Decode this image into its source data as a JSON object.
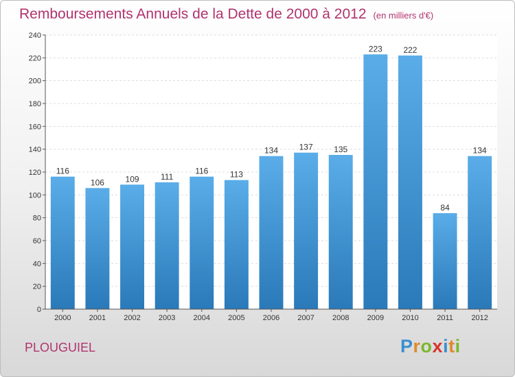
{
  "header": {
    "title": "Remboursements Annuels de la Dette de 2000 à 2012",
    "unit": "(en milliers d'€)"
  },
  "footer": {
    "city": "PLOUGUIEL",
    "logo": "Proxiti"
  },
  "colors": {
    "title": "#b0336e",
    "bar_top": "#5aade8",
    "bar_bottom": "#2a79b9",
    "logo_letters": [
      "#3a8fd0",
      "#e0892a",
      "#7ab82d",
      "#d8342d",
      "#3a8fd0",
      "#e0892a",
      "#7ab82d"
    ]
  },
  "chart_data": {
    "type": "bar",
    "categories": [
      "2000",
      "2001",
      "2002",
      "2003",
      "2004",
      "2005",
      "2006",
      "2007",
      "2008",
      "2009",
      "2010",
      "2011",
      "2012"
    ],
    "values": [
      116,
      106,
      109,
      111,
      116,
      113,
      134,
      137,
      135,
      223,
      222,
      84,
      134
    ],
    "ylim": [
      0,
      240
    ],
    "yticks": [
      0,
      20,
      40,
      60,
      80,
      100,
      120,
      140,
      160,
      180,
      200,
      220,
      240
    ],
    "grid": true,
    "xlabel": "",
    "ylabel": ""
  }
}
